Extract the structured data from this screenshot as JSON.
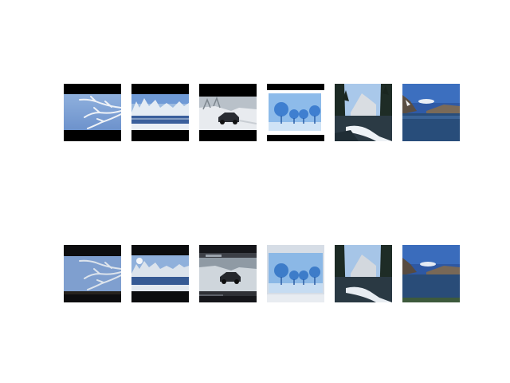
{
  "figure": {
    "background": "#ffffff",
    "rows": [
      {
        "id": "original",
        "thumbnails": [
          {
            "subject": "frosted-branches",
            "letterbox": "top-bottom-black"
          },
          {
            "subject": "frozen-lake-snowy-trees",
            "letterbox": "top-bottom-black"
          },
          {
            "subject": "car-on-snowy-road",
            "letterbox": "top-bottom-black"
          },
          {
            "subject": "blue-snowy-trees",
            "letterbox": "top-bottom-black"
          },
          {
            "subject": "winter-river-valley",
            "letterbox": "none"
          },
          {
            "subject": "mountain-lake",
            "letterbox": "none"
          }
        ]
      },
      {
        "id": "reconstructed",
        "thumbnails": [
          {
            "subject": "frosted-branches",
            "letterbox": "top-bottom-dark"
          },
          {
            "subject": "frozen-lake-snowy-trees",
            "letterbox": "top-bottom-dark"
          },
          {
            "subject": "car-on-snowy-road",
            "letterbox": "noisy-dark"
          },
          {
            "subject": "blue-snowy-trees",
            "letterbox": "light-border"
          },
          {
            "subject": "winter-river-valley",
            "letterbox": "none"
          },
          {
            "subject": "mountain-lake",
            "letterbox": "none"
          }
        ]
      }
    ]
  }
}
